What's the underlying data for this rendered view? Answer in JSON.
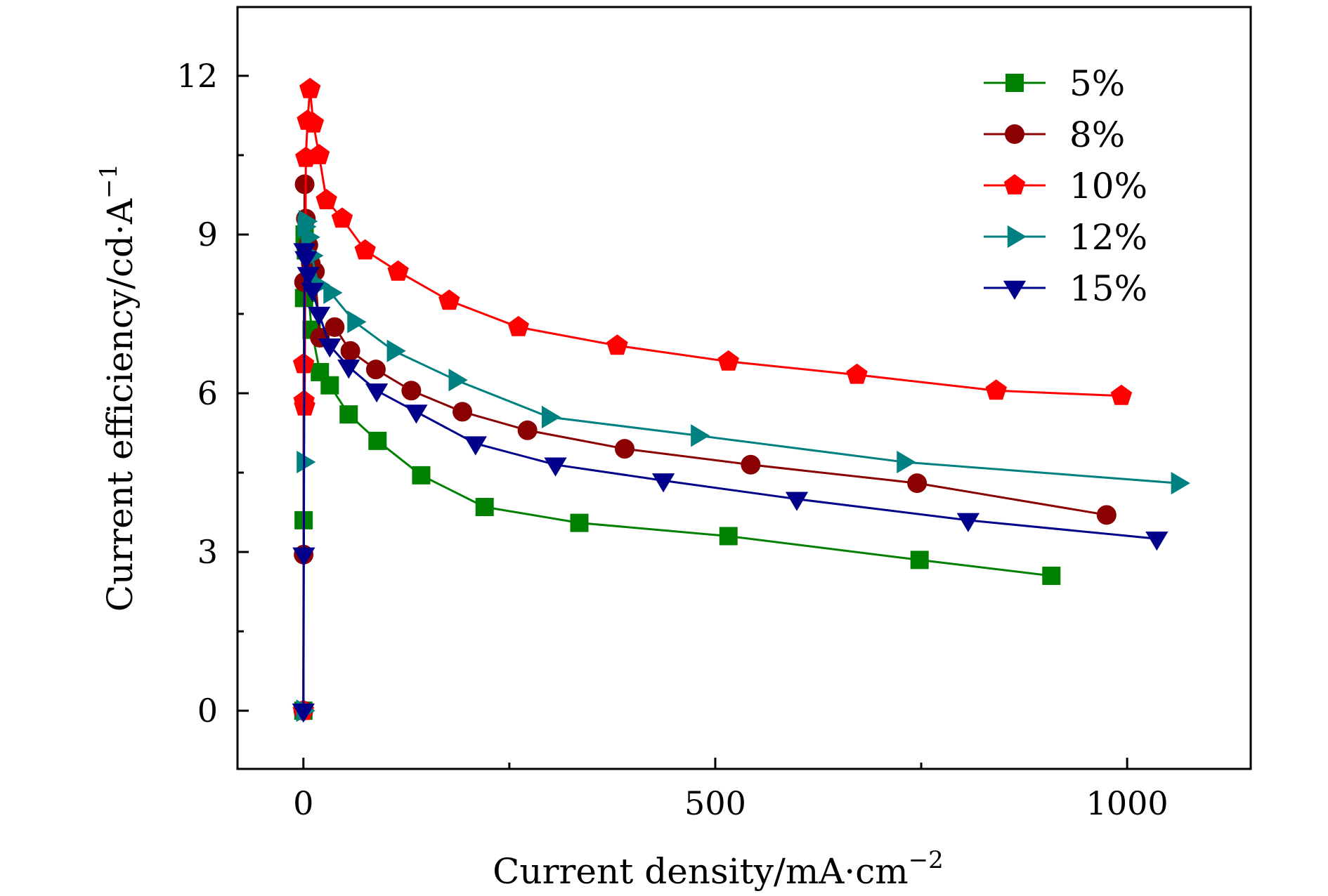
{
  "chart_data": {
    "type": "line",
    "xlabel": "Current density/mA·cm",
    "xlabel_sup": "−2",
    "ylabel": "Current efficiency/cd·A",
    "ylabel_sup": "−1",
    "xlim": [
      -80,
      1150
    ],
    "ylim": [
      -1.1,
      13.3
    ],
    "xticks": [
      0,
      500,
      1000
    ],
    "xtick_labels": [
      "0",
      "500",
      "1000"
    ],
    "yticks": [
      0,
      3,
      6,
      9,
      12
    ],
    "ytick_labels": [
      "0",
      "3",
      "6",
      "9",
      "12"
    ],
    "grid": false,
    "legend_position": "top-right",
    "series": [
      {
        "name": "5%",
        "color": "#008000",
        "marker": "square",
        "x": [
          0,
          0.3,
          0.8,
          1.5,
          3,
          6,
          10,
          20,
          32,
          55,
          90,
          143,
          220,
          335,
          516,
          748,
          908
        ],
        "y": [
          0,
          3.6,
          7.8,
          9.0,
          8.7,
          7.9,
          7.2,
          6.4,
          6.15,
          5.6,
          5.1,
          4.45,
          3.85,
          3.55,
          3.3,
          2.85,
          2.55
        ]
      },
      {
        "name": "8%",
        "color": "#8b0000",
        "marker": "circle",
        "x": [
          0,
          0.3,
          0.8,
          1.5,
          3,
          6,
          9,
          14,
          20,
          38,
          57,
          88,
          131,
          193,
          272,
          390,
          543,
          745,
          975
        ],
        "y": [
          0,
          2.95,
          8.1,
          9.95,
          9.3,
          8.8,
          8.45,
          8.3,
          7.05,
          7.25,
          6.8,
          6.45,
          6.05,
          5.65,
          5.3,
          4.95,
          4.65,
          4.3,
          3.7
        ]
      },
      {
        "name": "10%",
        "color": "#ff0000",
        "marker": "pentagon",
        "x": [
          0,
          0.3,
          0.8,
          1.5,
          3,
          5,
          8,
          12,
          19,
          28,
          47,
          75,
          115,
          177,
          261,
          381,
          516,
          672,
          841,
          993
        ],
        "y": [
          0,
          6.55,
          5.85,
          5.75,
          10.45,
          11.15,
          11.75,
          11.1,
          10.5,
          9.65,
          9.3,
          8.7,
          8.3,
          7.75,
          7.25,
          6.9,
          6.6,
          6.35,
          6.05,
          5.95
        ]
      },
      {
        "name": "12%",
        "color": "#008080",
        "marker": "triangle-right",
        "x": [
          0,
          0.5,
          1.5,
          3,
          6,
          10,
          18,
          33,
          62,
          110,
          185,
          298,
          479,
          729,
          1062
        ],
        "y": [
          0,
          4.7,
          9.15,
          9.25,
          8.95,
          8.6,
          8.05,
          7.9,
          7.35,
          6.8,
          6.25,
          5.55,
          5.2,
          4.7,
          4.3
        ]
      },
      {
        "name": "15%",
        "color": "#00008b",
        "marker": "triangle-down",
        "x": [
          0,
          0.5,
          1.5,
          3,
          6,
          11,
          19,
          32,
          55,
          89,
          137,
          209,
          306,
          437,
          599,
          807,
          1036
        ],
        "y": [
          0,
          2.95,
          8.7,
          8.55,
          8.25,
          7.95,
          7.5,
          6.9,
          6.5,
          6.05,
          5.65,
          5.05,
          4.65,
          4.35,
          4.0,
          3.6,
          3.25
        ]
      }
    ]
  }
}
